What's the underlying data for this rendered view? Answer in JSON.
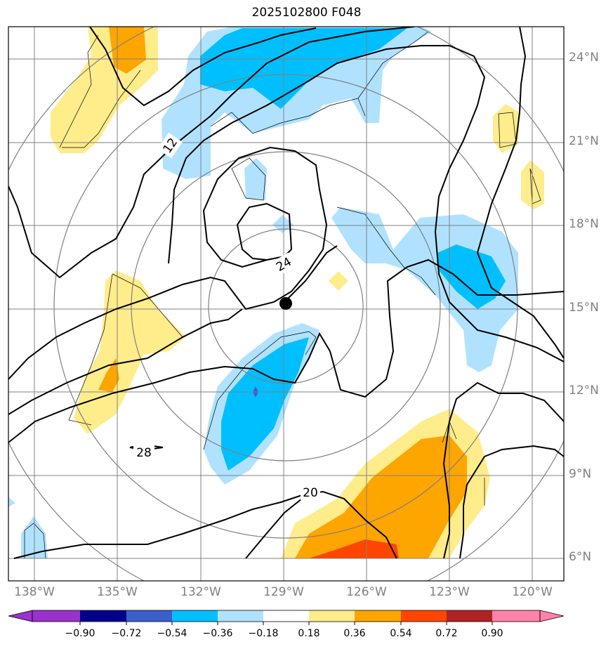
{
  "title": "2025102800 F048",
  "map": {
    "latitude_labels": [
      "24°N",
      "21°N",
      "18°N",
      "15°N",
      "12°N",
      "9°N",
      "6°N"
    ],
    "longitude_labels": [
      "138°W",
      "135°W",
      "132°W",
      "129°W",
      "126°W",
      "123°W",
      "120°W"
    ],
    "contour_labels": [
      "12",
      "24",
      "20",
      "28"
    ],
    "storm_center": "15.2°N, 129.0°W"
  },
  "colorbar": {
    "ticks": [
      "−0.90",
      "−0.72",
      "−0.54",
      "−0.36",
      "−0.18",
      "0.18",
      "0.36",
      "0.54",
      "0.72",
      "0.90"
    ],
    "colors": [
      "#9932cc",
      "#00008b",
      "#3a5fcd",
      "#00bfff",
      "#b0e2ff",
      "#ffffff",
      "#ffec8b",
      "#ffa500",
      "#ff4500",
      "#b22222",
      "#ff82ab"
    ]
  },
  "colors": {
    "fill_light_blue": "#b0e2ff",
    "fill_blue": "#00bfff",
    "fill_yellow": "#ffec8b",
    "fill_orange": "#ffa500",
    "fill_red": "#ff4500",
    "grid": "#808080",
    "contour": "#000000"
  }
}
